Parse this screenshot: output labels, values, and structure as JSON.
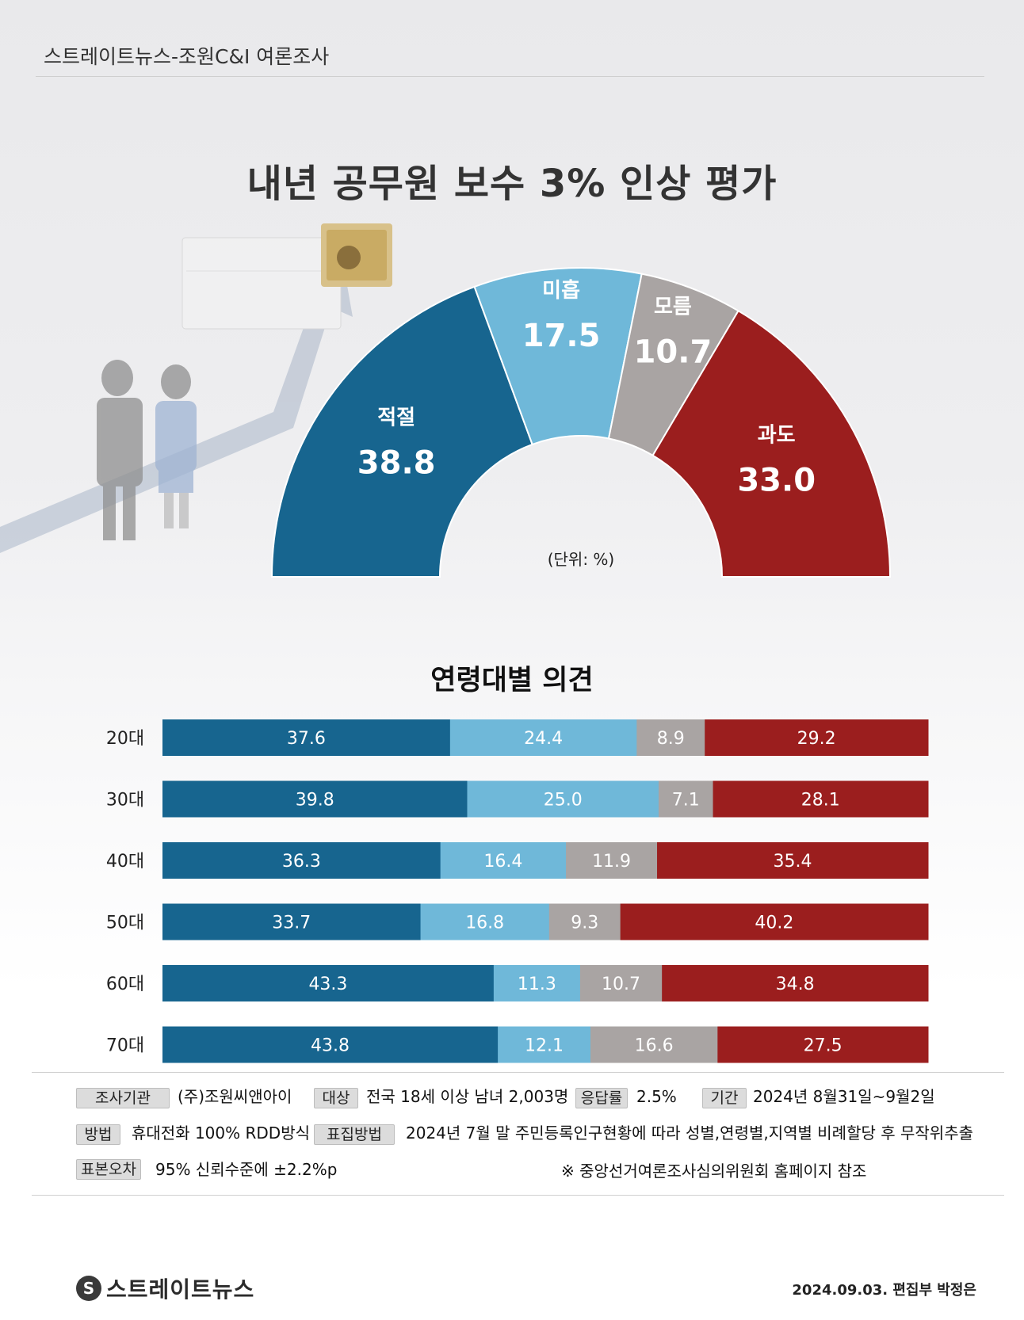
{
  "header": {
    "source": "스트레이트뉴스-조원C&I 여론조사"
  },
  "title": "내년 공무원 보수 3% 인상 평가",
  "colors": {
    "적절": "#17658f",
    "미흡": "#6fb8d9",
    "모름": "#a9a4a3",
    "과도": "#9b1e1e"
  },
  "chart_data": [
    {
      "type": "pie",
      "subtype": "half-donut",
      "unit_note": "(단위: %)",
      "slices": [
        {
          "label": "적절",
          "value": 38.8,
          "value_text": "38.8"
        },
        {
          "label": "미흡",
          "value": 17.5,
          "value_text": "17.5"
        },
        {
          "label": "모름",
          "value": 10.7,
          "value_text": "10.7"
        },
        {
          "label": "과도",
          "value": 33.0,
          "value_text": "33.0"
        }
      ]
    },
    {
      "type": "bar",
      "subtype": "stacked-horizontal-100",
      "title": "연령대별 의견",
      "categories": [
        "20대",
        "30대",
        "40대",
        "50대",
        "60대",
        "70대"
      ],
      "series": [
        {
          "name": "적절",
          "values": [
            37.6,
            39.8,
            36.3,
            33.7,
            43.3,
            43.8
          ],
          "labels": [
            "37.6",
            "39.8",
            "36.3",
            "33.7",
            "43.3",
            "43.8"
          ]
        },
        {
          "name": "미흡",
          "values": [
            24.4,
            25.0,
            16.4,
            16.8,
            11.3,
            12.1
          ],
          "labels": [
            "24.4",
            "25.0",
            "16.4",
            "16.8",
            "11.3",
            "12.1"
          ]
        },
        {
          "name": "모름",
          "values": [
            8.9,
            7.1,
            11.9,
            9.3,
            10.7,
            16.6
          ],
          "labels": [
            "8.9",
            "7.1",
            "11.9",
            "9.3",
            "10.7",
            "16.6"
          ]
        },
        {
          "name": "과도",
          "values": [
            29.2,
            28.1,
            35.4,
            40.2,
            34.8,
            27.5
          ],
          "labels": [
            "29.2",
            "28.1",
            "35.4",
            "40.2",
            "34.8",
            "27.5"
          ]
        }
      ]
    }
  ],
  "info": {
    "agency_label": "조사기관",
    "agency": "(주)조원씨앤아이",
    "target_label": "대상",
    "target": "전국 18세 이상 남녀 2,003명",
    "response_label": "응답률",
    "response": "2.5%",
    "period_label": "기간",
    "period": "2024년 8월31일~9월2일",
    "method_label": "방법",
    "method": "휴대전화 100% RDD방식",
    "sampling_label": "표집방법",
    "sampling": "2024년 7월 말 주민등록인구현황에 따라 성별,연령별,지역별 비례할당 후 무작위추출",
    "error_label": "표본오차",
    "error": "95% 신뢰수준에 ±2.2%p",
    "note": "※ 중앙선거여론조사심의위원회 홈페이지 참조"
  },
  "footer": {
    "logo_mark": "S",
    "logo_text": "스트레이트뉴스",
    "credit": "2024.09.03. 편집부 박정은"
  }
}
